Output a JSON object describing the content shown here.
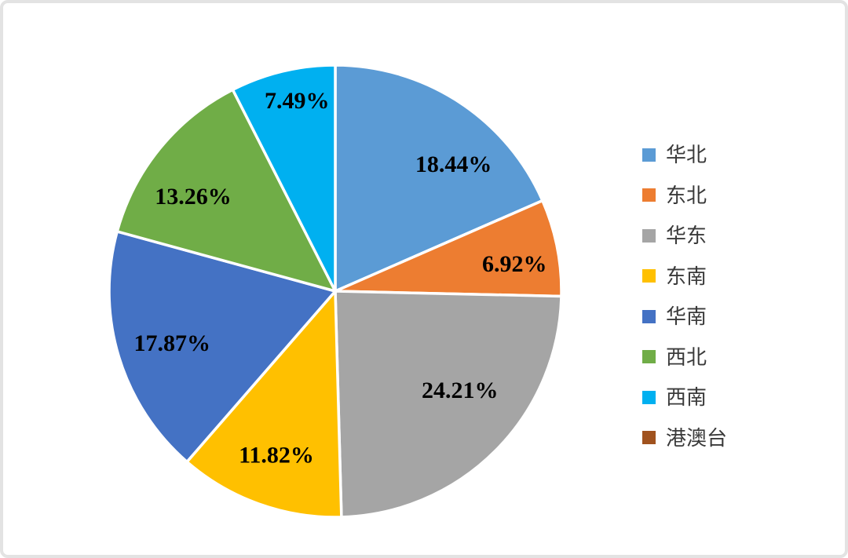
{
  "frame": {
    "background": "#ffffff",
    "border_color": "#e3e3e3"
  },
  "chart_data": {
    "type": "pie",
    "title": "",
    "categories": [
      "华北",
      "东北",
      "华东",
      "东南",
      "华南",
      "西北",
      "西南",
      "港澳台"
    ],
    "values": [
      18.44,
      6.92,
      24.21,
      11.82,
      17.87,
      13.26,
      7.49,
      0
    ],
    "labels": [
      "18.44%",
      "6.92%",
      "24.21%",
      "11.82%",
      "17.87%",
      "13.26%",
      "7.49%",
      ""
    ],
    "colors": [
      "#5B9BD5",
      "#ED7D31",
      "#A5A5A5",
      "#FFC000",
      "#4472C4",
      "#70AD47",
      "#00B0F0",
      "#A0521E"
    ],
    "start_angle_deg": 0,
    "direction": "clockwise",
    "slice_border_color": "#FFFFFF",
    "label_color": "#000000",
    "legend_position": "right",
    "legend_text_color": "#3a3a3a"
  }
}
